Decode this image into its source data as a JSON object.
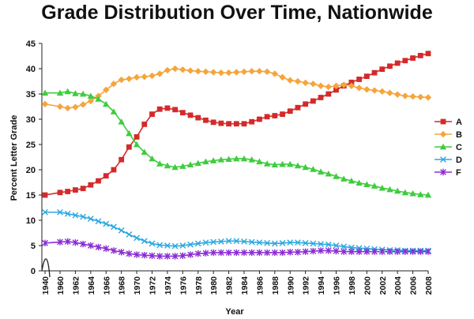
{
  "chart_data": {
    "type": "line",
    "title": "Grade Distribution Over Time, Nationwide",
    "xlabel": "Year",
    "ylabel": "Percent Letter Grade",
    "ylim": [
      0,
      45
    ],
    "yticks": [
      0,
      5,
      10,
      15,
      20,
      25,
      30,
      35,
      40,
      45
    ],
    "xticks": [
      "1940",
      "1960",
      "1962",
      "1964",
      "1966",
      "1968",
      "1970",
      "1972",
      "1974",
      "1976",
      "1978",
      "1980",
      "1982",
      "1984",
      "1986",
      "1988",
      "1990",
      "1992",
      "1994",
      "1996",
      "1998",
      "2000",
      "2002",
      "2004",
      "2006",
      "2008"
    ],
    "axis_break": "1940-1960",
    "grid": false,
    "legend_position": "right",
    "x": [
      1940,
      1960,
      1961,
      1962,
      1963,
      1964,
      1965,
      1966,
      1967,
      1968,
      1969,
      1970,
      1971,
      1972,
      1973,
      1974,
      1975,
      1976,
      1977,
      1978,
      1979,
      1980,
      1981,
      1982,
      1983,
      1984,
      1985,
      1986,
      1987,
      1988,
      1989,
      1990,
      1991,
      1992,
      1993,
      1994,
      1995,
      1996,
      1997,
      1998,
      1999,
      2000,
      2001,
      2002,
      2003,
      2004,
      2005,
      2006,
      2007,
      2008
    ],
    "series": [
      {
        "name": "A",
        "color": "#d42a2a",
        "marker": "square",
        "values": [
          15.0,
          15.5,
          15.7,
          16.0,
          16.3,
          17.0,
          17.8,
          18.8,
          20.0,
          22.0,
          24.5,
          26.5,
          29.0,
          31.0,
          32.0,
          32.2,
          31.9,
          31.3,
          30.8,
          30.3,
          29.8,
          29.4,
          29.2,
          29.1,
          29.1,
          29.1,
          29.5,
          30.0,
          30.5,
          30.7,
          31.0,
          31.6,
          32.3,
          33.0,
          33.6,
          34.3,
          35.0,
          35.8,
          36.6,
          37.3,
          37.9,
          38.5,
          39.2,
          39.9,
          40.5,
          41.1,
          41.6,
          42.1,
          42.6,
          43.0
        ]
      },
      {
        "name": "B",
        "color": "#f5a53b",
        "marker": "diamond",
        "values": [
          33.0,
          32.5,
          32.2,
          32.4,
          32.9,
          33.6,
          34.6,
          35.8,
          37.0,
          37.8,
          38.0,
          38.3,
          38.4,
          38.6,
          39.0,
          39.7,
          40.0,
          39.8,
          39.6,
          39.5,
          39.4,
          39.3,
          39.2,
          39.2,
          39.3,
          39.4,
          39.5,
          39.5,
          39.4,
          39.0,
          38.3,
          37.7,
          37.5,
          37.2,
          37.0,
          36.6,
          36.4,
          36.6,
          36.8,
          36.6,
          36.2,
          35.9,
          35.7,
          35.5,
          35.2,
          34.9,
          34.6,
          34.5,
          34.4,
          34.3
        ]
      },
      {
        "name": "C",
        "color": "#3fcc3f",
        "marker": "triangle",
        "values": [
          35.2,
          35.2,
          35.5,
          35.1,
          35.0,
          34.6,
          34.0,
          33.0,
          31.5,
          29.5,
          27.2,
          25.0,
          23.5,
          22.2,
          21.2,
          20.8,
          20.5,
          20.7,
          21.0,
          21.3,
          21.6,
          21.8,
          22.0,
          22.1,
          22.2,
          22.2,
          22.0,
          21.6,
          21.2,
          21.0,
          21.1,
          21.1,
          20.8,
          20.5,
          20.1,
          19.6,
          19.2,
          18.7,
          18.2,
          17.8,
          17.4,
          17.1,
          16.8,
          16.4,
          16.1,
          15.8,
          15.5,
          15.3,
          15.1,
          15.0
        ]
      },
      {
        "name": "D",
        "color": "#2aa8e0",
        "marker": "x",
        "values": [
          11.6,
          11.6,
          11.3,
          11.0,
          10.7,
          10.3,
          9.8,
          9.3,
          8.7,
          8.0,
          7.2,
          6.5,
          5.9,
          5.4,
          5.1,
          5.0,
          4.9,
          5.0,
          5.2,
          5.4,
          5.6,
          5.7,
          5.8,
          5.9,
          5.9,
          5.8,
          5.7,
          5.6,
          5.5,
          5.4,
          5.5,
          5.6,
          5.6,
          5.5,
          5.4,
          5.3,
          5.2,
          5.0,
          4.8,
          4.6,
          4.5,
          4.4,
          4.3,
          4.2,
          4.1,
          4.1,
          4.0,
          4.0,
          4.0,
          4.0
        ]
      },
      {
        "name": "F",
        "color": "#8b2cd6",
        "marker": "star",
        "values": [
          5.5,
          5.7,
          5.8,
          5.6,
          5.3,
          5.0,
          4.7,
          4.4,
          4.0,
          3.7,
          3.4,
          3.2,
          3.1,
          3.0,
          2.9,
          2.9,
          2.9,
          3.0,
          3.2,
          3.4,
          3.5,
          3.6,
          3.6,
          3.6,
          3.6,
          3.6,
          3.6,
          3.6,
          3.6,
          3.6,
          3.6,
          3.7,
          3.7,
          3.8,
          3.9,
          4.0,
          4.0,
          3.9,
          3.8,
          3.8,
          3.8,
          3.8,
          3.8,
          3.8,
          3.8,
          3.8,
          3.8,
          3.8,
          3.8,
          3.8
        ]
      }
    ]
  }
}
